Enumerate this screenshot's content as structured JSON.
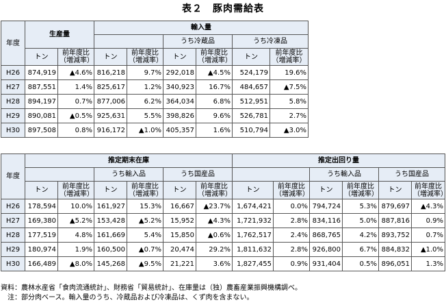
{
  "title": "表２　豚肉需給表",
  "table1": {
    "year_header": "年度",
    "production_header": "生産量",
    "imports_header": "輸入量",
    "chilled_header": "うち冷蔵品",
    "frozen_header": "うち冷凍品",
    "ton_label": "トン",
    "yoy_label_line1": "前年度比",
    "yoy_label_line2": "（増減率）",
    "rows": [
      {
        "year": "H26",
        "prod": "874,919",
        "prod_r": "▲4.6%",
        "imp": "816,218",
        "imp_r": "9.7%",
        "chl": "292,018",
        "chl_r": "▲4.5%",
        "frz": "524,179",
        "frz_r": "19.6%"
      },
      {
        "year": "H27",
        "prod": "887,551",
        "prod_r": "1.4%",
        "imp": "825,617",
        "imp_r": "1.2%",
        "chl": "340,923",
        "chl_r": "16.7%",
        "frz": "484,657",
        "frz_r": "▲7.5%"
      },
      {
        "year": "H28",
        "prod": "894,197",
        "prod_r": "0.7%",
        "imp": "877,006",
        "imp_r": "6.2%",
        "chl": "364,034",
        "chl_r": "6.8%",
        "frz": "512,951",
        "frz_r": "5.8%"
      },
      {
        "year": "H29",
        "prod": "890,081",
        "prod_r": "▲0.5%",
        "imp": "925,631",
        "imp_r": "5.5%",
        "chl": "398,826",
        "chl_r": "9.6%",
        "frz": "526,781",
        "frz_r": "2.7%"
      },
      {
        "year": "H30",
        "prod": "897,508",
        "prod_r": "0.8%",
        "imp": "916,172",
        "imp_r": "▲1.0%",
        "chl": "405,357",
        "chl_r": "1.6%",
        "frz": "510,794",
        "frz_r": "▲3.0%"
      }
    ]
  },
  "table2": {
    "year_header": "年度",
    "stock_header": "推定期末在庫",
    "shipment_header": "推定出回り量",
    "imported_header": "うち輸入品",
    "domestic_header": "うち国産品",
    "ton_label": "トン",
    "yoy_label_line1": "前年度比",
    "yoy_label_line2": "（増減率）",
    "rows": [
      {
        "year": "H26",
        "st": "178,594",
        "st_r": "10.0%",
        "sti": "161,927",
        "sti_r": "15.3%",
        "std": "16,667",
        "std_r": "▲23.7%",
        "sh": "1,674,421",
        "sh_r": "0.0%",
        "shi": "794,724",
        "shi_r": "5.3%",
        "shd": "879,697",
        "shd_r": "▲4.3%"
      },
      {
        "year": "H27",
        "st": "169,380",
        "st_r": "▲5.2%",
        "sti": "153,428",
        "sti_r": "▲5.2%",
        "std": "15,952",
        "std_r": "▲4.3%",
        "sh": "1,721,932",
        "sh_r": "2.8%",
        "shi": "834,116",
        "shi_r": "5.0%",
        "shd": "887,816",
        "shd_r": "0.9%"
      },
      {
        "year": "H28",
        "st": "177,519",
        "st_r": "4.8%",
        "sti": "161,669",
        "sti_r": "5.4%",
        "std": "15,850",
        "std_r": "▲0.6%",
        "sh": "1,762,517",
        "sh_r": "2.4%",
        "shi": "868,765",
        "shi_r": "4.2%",
        "shd": "893,752",
        "shd_r": "0.7%"
      },
      {
        "year": "H29",
        "st": "180,974",
        "st_r": "1.9%",
        "sti": "160,500",
        "sti_r": "▲0.7%",
        "std": "20,474",
        "std_r": "29.2%",
        "sh": "1,811,632",
        "sh_r": "2.8%",
        "shi": "926,800",
        "shi_r": "6.7%",
        "shd": "884,832",
        "shd_r": "▲1.0%"
      },
      {
        "year": "H30",
        "st": "166,489",
        "st_r": "▲8.0%",
        "sti": "145,268",
        "sti_r": "▲9.5%",
        "std": "21,221",
        "std_r": "3.6%",
        "sh": "1,827,455",
        "sh_r": "0.9%",
        "shi": "931,404",
        "shi_r": "0.5%",
        "shd": "896,051",
        "shd_r": "1.3%"
      }
    ]
  },
  "notes": {
    "source": "資料：農林水産省「食肉流通統計」、財務省「貿易統計」、在庫量は（独）農畜産業振興機構調べ。",
    "note": "　注：部分肉ベース。輸入量のうち、冷蔵品および冷凍品は、くず肉を含まない。"
  }
}
